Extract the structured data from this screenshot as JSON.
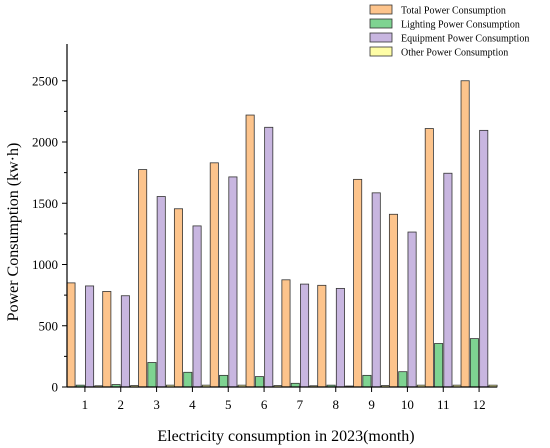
{
  "chart_data": {
    "type": "bar",
    "xlabel": "Electricity consumption in 2023(month)",
    "ylabel": "Power Consumption (kw·h)",
    "categories": [
      "1",
      "2",
      "3",
      "4",
      "5",
      "6",
      "7",
      "8",
      "9",
      "10",
      "11",
      "12"
    ],
    "ylim": [
      0,
      2800
    ],
    "yticks": [
      0,
      500,
      1000,
      1500,
      2000,
      2500
    ],
    "ytick_labels": [
      "0",
      "500",
      "1000",
      "1500",
      "2000",
      "2500"
    ],
    "grid": false,
    "legend_position": "top-right",
    "series": [
      {
        "name": "Total Power Consumption",
        "color": "#FDC48C",
        "values": [
          850,
          780,
          1775,
          1455,
          1830,
          2220,
          875,
          830,
          1695,
          1410,
          2110,
          2500
        ]
      },
      {
        "name": "Lighting Power Consumption",
        "color": "#7ED391",
        "values": [
          15,
          20,
          200,
          120,
          95,
          85,
          30,
          15,
          95,
          125,
          355,
          395
        ]
      },
      {
        "name": "Equipment Power Consumption",
        "color": "#C8B6E0",
        "values": [
          825,
          745,
          1555,
          1315,
          1715,
          2120,
          840,
          805,
          1585,
          1265,
          1745,
          2095
        ]
      },
      {
        "name": "Other Power Consumption",
        "color": "#FEFDA6",
        "values": [
          10,
          12,
          15,
          15,
          15,
          12,
          10,
          8,
          12,
          15,
          15,
          15
        ]
      }
    ]
  }
}
